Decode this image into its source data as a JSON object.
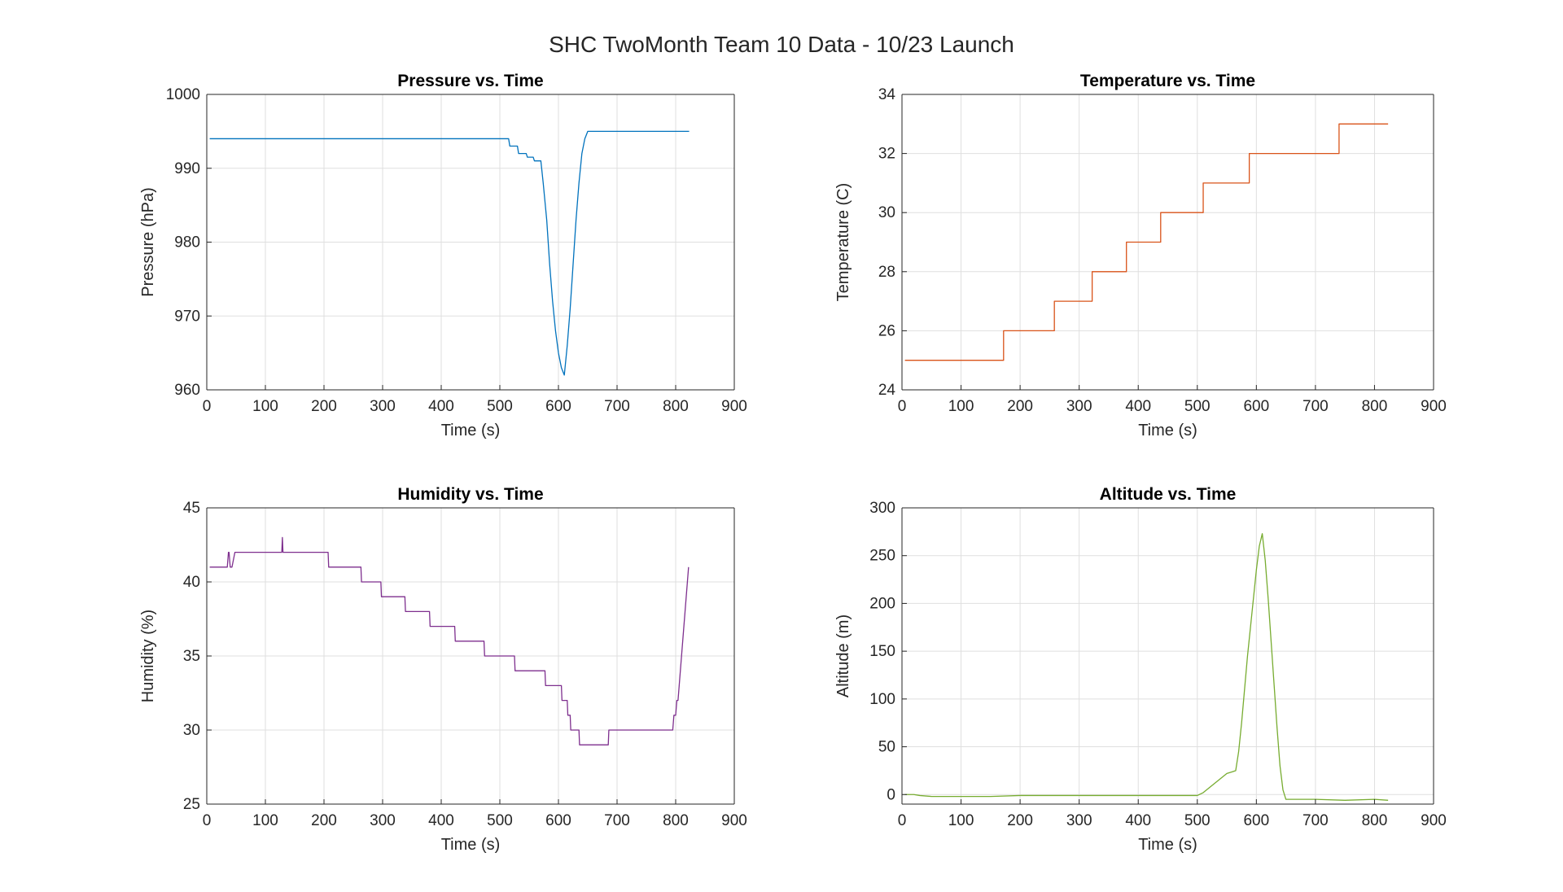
{
  "figure": {
    "title": "SHC TwoMonth Team 10 Data - 10/23 Launch"
  },
  "chart_data": [
    {
      "type": "line",
      "title": "Pressure vs. Time",
      "xlabel": "Time (s)",
      "ylabel": "Pressure (hPa)",
      "xlim": [
        0,
        900
      ],
      "ylim": [
        960,
        1000
      ],
      "xticks": [
        0,
        100,
        200,
        300,
        400,
        500,
        600,
        700,
        800,
        900
      ],
      "yticks": [
        960,
        970,
        980,
        990,
        1000
      ],
      "grid": true,
      "color": "#0072BD",
      "series": [
        {
          "x": [
            5,
            515,
            517,
            530,
            532,
            545,
            547,
            557,
            559,
            570,
            574,
            580,
            585,
            590,
            595,
            600,
            605,
            610,
            615,
            620,
            625,
            630,
            635,
            640,
            645,
            650,
            655,
            700,
            823
          ],
          "y": [
            994,
            994,
            993,
            993,
            992,
            992,
            991.5,
            991.5,
            991,
            991,
            988,
            983,
            977,
            972,
            968,
            965,
            963,
            962,
            966,
            971,
            977,
            983,
            988,
            992,
            994,
            995,
            995,
            995,
            995
          ]
        }
      ]
    },
    {
      "type": "line",
      "title": "Temperature vs. Time",
      "xlabel": "Time (s)",
      "ylabel": "Temperature (C)",
      "xlim": [
        0,
        900
      ],
      "ylim": [
        24,
        34
      ],
      "xticks": [
        0,
        100,
        200,
        300,
        400,
        500,
        600,
        700,
        800,
        900
      ],
      "yticks": [
        24,
        26,
        28,
        30,
        32,
        34
      ],
      "grid": true,
      "color": "#D95319",
      "series": [
        {
          "x": [
            5,
            172,
            172,
            258,
            258,
            322,
            322,
            380,
            380,
            438,
            438,
            510,
            510,
            588,
            588,
            740,
            740,
            823
          ],
          "y": [
            25,
            25,
            26,
            26,
            27,
            27,
            28,
            28,
            29,
            29,
            30,
            30,
            31,
            31,
            32,
            32,
            33,
            33
          ]
        }
      ]
    },
    {
      "type": "line",
      "title": "Humidity vs. Time",
      "xlabel": "Time (s)",
      "ylabel": "Humidity (%)",
      "xlim": [
        0,
        900
      ],
      "ylim": [
        25,
        45
      ],
      "xticks": [
        0,
        100,
        200,
        300,
        400,
        500,
        600,
        700,
        800,
        900
      ],
      "yticks": [
        25,
        30,
        35,
        40,
        45
      ],
      "grid": true,
      "color": "#7E2F8E",
      "series": [
        {
          "x": [
            5,
            35,
            37,
            38,
            40,
            43,
            48,
            50,
            128,
            129,
            130,
            131,
            207,
            208,
            263,
            264,
            297,
            298,
            338,
            339,
            380,
            381,
            423,
            424,
            473,
            474,
            525,
            526,
            577,
            578,
            605,
            606,
            615,
            616,
            620,
            621,
            635,
            636,
            685,
            686,
            795,
            797,
            800,
            802,
            804,
            806,
            808,
            810,
            812,
            814,
            816,
            818,
            820,
            822
          ],
          "y": [
            41,
            41,
            42,
            42,
            41,
            41,
            42,
            42,
            42,
            43,
            42,
            42,
            42,
            41,
            41,
            40,
            40,
            39,
            39,
            38,
            38,
            37,
            37,
            36,
            36,
            35,
            35,
            34,
            34,
            33,
            33,
            32,
            32,
            31,
            31,
            30,
            30,
            29,
            29,
            30,
            30,
            31,
            31,
            32,
            32,
            33,
            34,
            35,
            36,
            37,
            38,
            39,
            40,
            41
          ]
        }
      ]
    },
    {
      "type": "line",
      "title": "Altitude vs. Time",
      "xlabel": "Time (s)",
      "ylabel": "Altitude (m)",
      "xlim": [
        0,
        900
      ],
      "ylim": [
        -10,
        300
      ],
      "xticks": [
        0,
        100,
        200,
        300,
        400,
        500,
        600,
        700,
        800,
        900
      ],
      "yticks": [
        0,
        50,
        100,
        150,
        200,
        250,
        300
      ],
      "grid": true,
      "color": "#77AC30",
      "series": [
        {
          "x": [
            5,
            20,
            30,
            50,
            100,
            150,
            200,
            250,
            300,
            350,
            400,
            450,
            500,
            510,
            520,
            530,
            540,
            550,
            560,
            565,
            570,
            575,
            580,
            585,
            590,
            595,
            600,
            605,
            610,
            615,
            620,
            625,
            630,
            635,
            640,
            645,
            650,
            700,
            750,
            800,
            823
          ],
          "y": [
            0,
            0,
            -1,
            -2,
            -2,
            -2,
            -1,
            -1,
            -1,
            -1,
            -1,
            -1,
            -1,
            2,
            7,
            12,
            17,
            22,
            24,
            25,
            45,
            75,
            110,
            145,
            175,
            205,
            235,
            260,
            273,
            245,
            205,
            160,
            115,
            70,
            30,
            5,
            -5,
            -5,
            -6,
            -5,
            -6
          ]
        }
      ]
    }
  ]
}
